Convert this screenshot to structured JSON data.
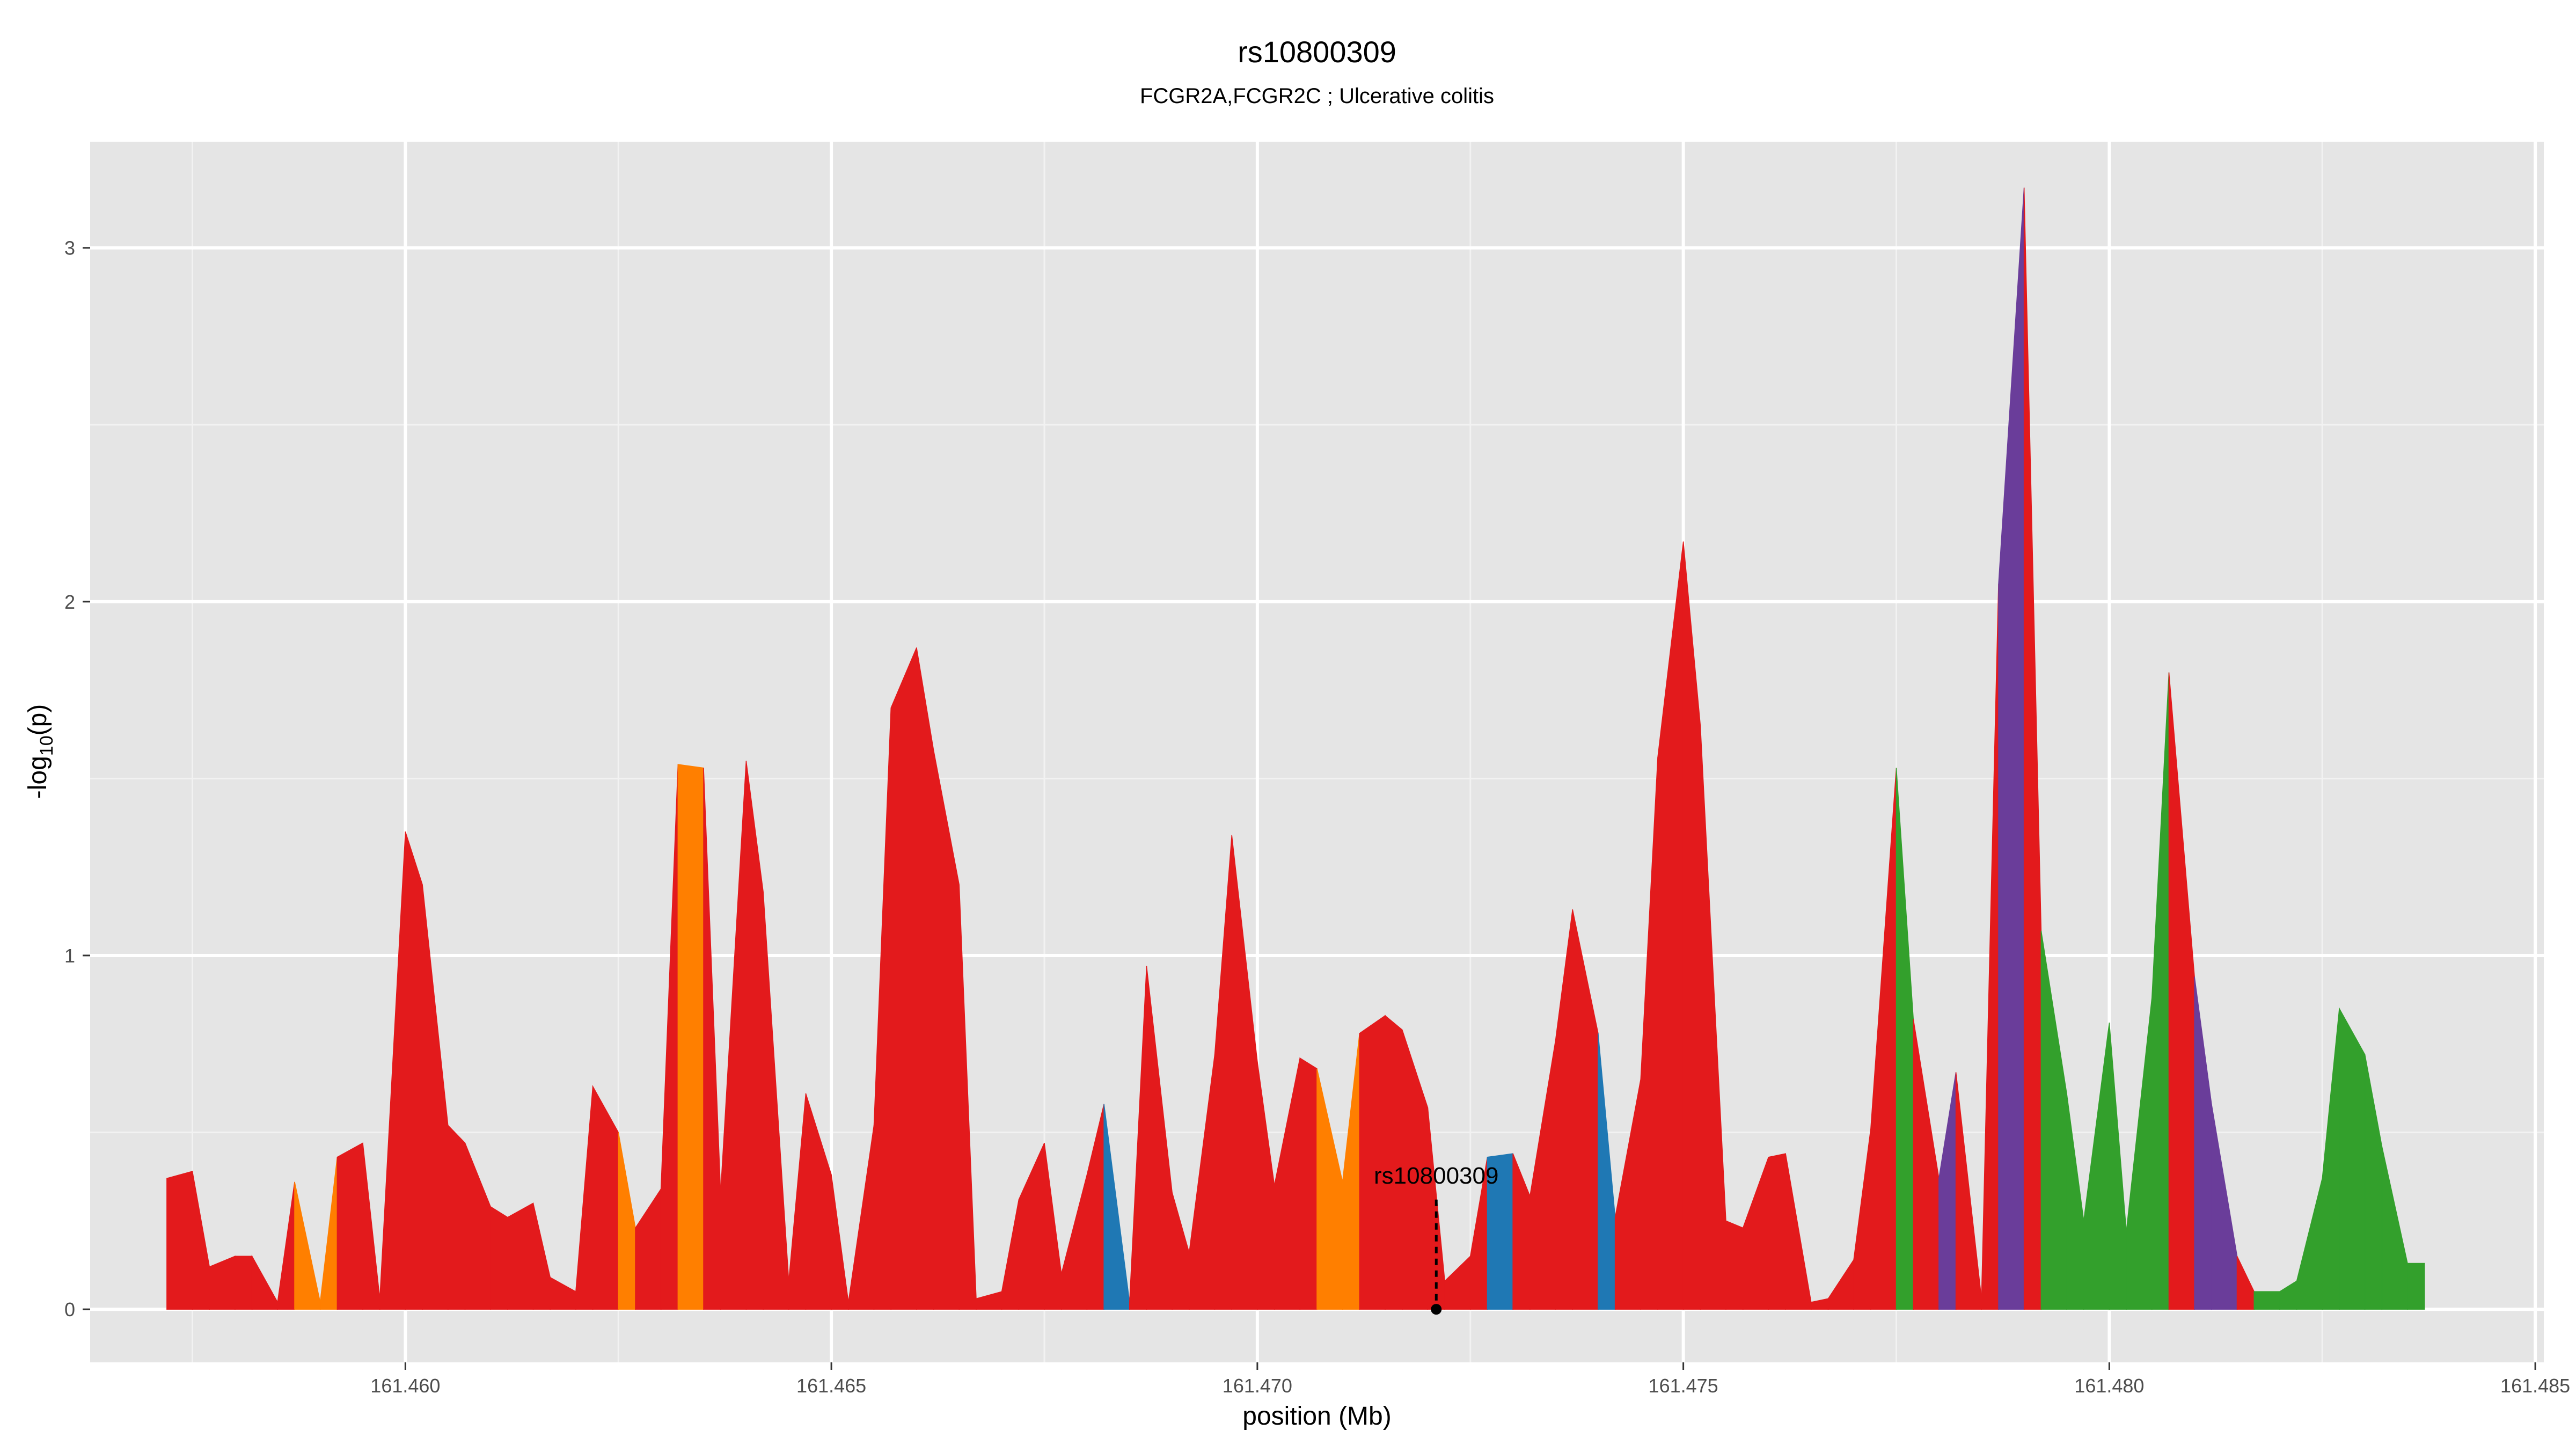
{
  "chart_data": {
    "type": "area",
    "title": "rs10800309",
    "subtitle": "FCGR2A,FCGR2C ; Ulcerative colitis",
    "xlabel": "position (Mb)",
    "ylabel": "-log10(p)",
    "ylabel_parts": {
      "base": "-log",
      "sub": "10",
      "rest": "(p)"
    },
    "xlim": [
      161.4563,
      161.4851
    ],
    "ylim": [
      -0.15,
      3.3
    ],
    "x_ticks": [
      161.46,
      161.465,
      161.47,
      161.475,
      161.48,
      161.485
    ],
    "x_tick_labels": [
      "161.460",
      "161.465",
      "161.470",
      "161.475",
      "161.480",
      "161.485"
    ],
    "y_ticks": [
      0,
      1,
      2,
      3
    ],
    "y_tick_labels": [
      "0",
      "1",
      "2",
      "3"
    ],
    "grid": true,
    "colors": {
      "panel_background": "#e5e5e5",
      "grid_major": "#ffffff",
      "grid_minor": "#f2f2f2",
      "red": "#e31a1c",
      "orange": "#ff7f00",
      "blue": "#1f78b4",
      "green": "#33a02c",
      "purple": "#6a3d9a"
    },
    "annotation": {
      "label": "rs10800309",
      "x": 161.4721,
      "y": 0,
      "label_y": 0.31
    },
    "points": [
      [
        161.4572,
        0.37,
        "red"
      ],
      [
        161.4575,
        0.39,
        "red"
      ],
      [
        161.4577,
        0.12,
        "red"
      ],
      [
        161.458,
        0.15,
        "red"
      ],
      [
        161.4582,
        0.15,
        "red"
      ],
      [
        161.4585,
        0.02,
        "red"
      ],
      [
        161.4587,
        0.36,
        "orange"
      ],
      [
        161.459,
        0.02,
        "orange"
      ],
      [
        161.4592,
        0.43,
        "red"
      ],
      [
        161.4595,
        0.47,
        "red"
      ],
      [
        161.4597,
        0.03,
        "red"
      ],
      [
        161.46,
        1.35,
        "red"
      ],
      [
        161.4602,
        1.2,
        "red"
      ],
      [
        161.4605,
        0.52,
        "red"
      ],
      [
        161.4607,
        0.47,
        "red"
      ],
      [
        161.461,
        0.29,
        "red"
      ],
      [
        161.4612,
        0.26,
        "red"
      ],
      [
        161.4615,
        0.3,
        "red"
      ],
      [
        161.4617,
        0.09,
        "red"
      ],
      [
        161.462,
        0.05,
        "red"
      ],
      [
        161.4622,
        0.63,
        "red"
      ],
      [
        161.4625,
        0.5,
        "orange"
      ],
      [
        161.4627,
        0.23,
        "red"
      ],
      [
        161.463,
        0.34,
        "red"
      ],
      [
        161.4632,
        1.54,
        "orange"
      ],
      [
        161.4635,
        1.53,
        "red"
      ],
      [
        161.4637,
        0.33,
        "red"
      ],
      [
        161.464,
        1.55,
        "red"
      ],
      [
        161.4642,
        1.18,
        "red"
      ],
      [
        161.4645,
        0.08,
        "red"
      ],
      [
        161.4647,
        0.61,
        "red"
      ],
      [
        161.465,
        0.38,
        "red"
      ],
      [
        161.4652,
        0.02,
        "red"
      ],
      [
        161.4655,
        0.52,
        "red"
      ],
      [
        161.4657,
        1.7,
        "red"
      ],
      [
        161.466,
        1.87,
        "red"
      ],
      [
        161.4662,
        1.58,
        "red"
      ],
      [
        161.4665,
        1.2,
        "red"
      ],
      [
        161.4667,
        0.03,
        "red"
      ],
      [
        161.467,
        0.05,
        "red"
      ],
      [
        161.4672,
        0.31,
        "red"
      ],
      [
        161.4675,
        0.47,
        "red"
      ],
      [
        161.4677,
        0.1,
        "red"
      ],
      [
        161.468,
        0.38,
        "red"
      ],
      [
        161.4682,
        0.58,
        "blue"
      ],
      [
        161.4685,
        0.02,
        "red"
      ],
      [
        161.4687,
        0.97,
        "red"
      ],
      [
        161.469,
        0.33,
        "red"
      ],
      [
        161.4692,
        0.16,
        "red"
      ],
      [
        161.4695,
        0.72,
        "red"
      ],
      [
        161.4697,
        1.34,
        "red"
      ],
      [
        161.47,
        0.7,
        "red"
      ],
      [
        161.4702,
        0.35,
        "red"
      ],
      [
        161.4705,
        0.71,
        "red"
      ],
      [
        161.4707,
        0.68,
        "orange"
      ],
      [
        161.471,
        0.36,
        "orange"
      ],
      [
        161.4712,
        0.78,
        "red"
      ],
      [
        161.4715,
        0.83,
        "red"
      ],
      [
        161.4717,
        0.79,
        "red"
      ],
      [
        161.472,
        0.57,
        "red"
      ],
      [
        161.4722,
        0.08,
        "red"
      ],
      [
        161.4725,
        0.15,
        "red"
      ],
      [
        161.4727,
        0.43,
        "blue"
      ],
      [
        161.473,
        0.44,
        "red"
      ],
      [
        161.4732,
        0.32,
        "red"
      ],
      [
        161.4735,
        0.76,
        "red"
      ],
      [
        161.4737,
        1.13,
        "red"
      ],
      [
        161.474,
        0.78,
        "blue"
      ],
      [
        161.4742,
        0.26,
        "red"
      ],
      [
        161.4745,
        0.65,
        "red"
      ],
      [
        161.4747,
        1.56,
        "red"
      ],
      [
        161.475,
        2.17,
        "red"
      ],
      [
        161.4752,
        1.65,
        "red"
      ],
      [
        161.4755,
        0.25,
        "red"
      ],
      [
        161.4757,
        0.23,
        "red"
      ],
      [
        161.476,
        0.43,
        "red"
      ],
      [
        161.4762,
        0.44,
        "red"
      ],
      [
        161.4765,
        0.02,
        "red"
      ],
      [
        161.4767,
        0.03,
        "red"
      ],
      [
        161.477,
        0.14,
        "red"
      ],
      [
        161.4772,
        0.51,
        "red"
      ],
      [
        161.4775,
        1.53,
        "green"
      ],
      [
        161.4777,
        0.82,
        "red"
      ],
      [
        161.478,
        0.37,
        "purple"
      ],
      [
        161.4782,
        0.67,
        "red"
      ],
      [
        161.4785,
        0.03,
        "red"
      ],
      [
        161.4787,
        2.05,
        "purple"
      ],
      [
        161.479,
        3.17,
        "red"
      ],
      [
        161.4792,
        1.07,
        "green"
      ],
      [
        161.4795,
        0.61,
        "green"
      ],
      [
        161.4797,
        0.25,
        "green"
      ],
      [
        161.48,
        0.81,
        "green"
      ],
      [
        161.4802,
        0.22,
        "green"
      ],
      [
        161.4805,
        0.88,
        "green"
      ],
      [
        161.4807,
        1.8,
        "red"
      ],
      [
        161.481,
        0.94,
        "purple"
      ],
      [
        161.4812,
        0.58,
        "purple"
      ],
      [
        161.4815,
        0.15,
        "red"
      ],
      [
        161.4817,
        0.05,
        "green"
      ],
      [
        161.482,
        0.05,
        "green"
      ],
      [
        161.4822,
        0.08,
        "green"
      ],
      [
        161.4825,
        0.37,
        "green"
      ],
      [
        161.4827,
        0.85,
        "green"
      ],
      [
        161.483,
        0.72,
        "green"
      ],
      [
        161.4832,
        0.46,
        "green"
      ],
      [
        161.4835,
        0.13,
        "green"
      ],
      [
        161.4837,
        0.13,
        "green"
      ]
    ]
  }
}
